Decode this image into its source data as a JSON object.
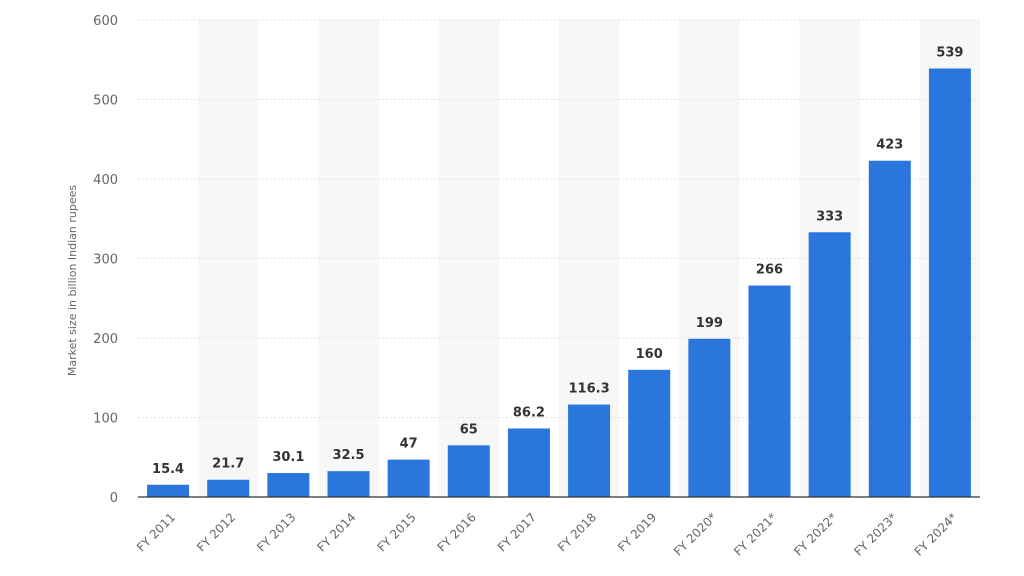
{
  "chart_data": {
    "type": "bar",
    "categories": [
      "FY 2011",
      "FY 2012",
      "FY 2013",
      "FY 2014",
      "FY 2015",
      "FY 2016",
      "FY 2017",
      "FY 2018",
      "FY 2019",
      "FY 2020*",
      "FY 2021*",
      "FY 2022*",
      "FY 2023*",
      "FY 2024*"
    ],
    "values": [
      15.4,
      21.7,
      30.1,
      32.5,
      47,
      65,
      86.2,
      116.3,
      160,
      199,
      266,
      333,
      423,
      539
    ],
    "value_labels": [
      "15.4",
      "21.7",
      "30.1",
      "32.5",
      "47",
      "65",
      "86.2",
      "116.3",
      "160",
      "199",
      "266",
      "333",
      "423",
      "539"
    ],
    "title": "",
    "xlabel": "",
    "ylabel": "Market size in billion Indian rupees",
    "ylim": [
      0,
      600
    ],
    "yticks": [
      0,
      100,
      200,
      300,
      400,
      500,
      600
    ],
    "ytick_labels": [
      "0",
      "100",
      "200",
      "300",
      "400",
      "500",
      "600"
    ],
    "grid": true,
    "legend": "none",
    "bar_color": "#2a76dd",
    "band_color": "#f7f7f7"
  }
}
